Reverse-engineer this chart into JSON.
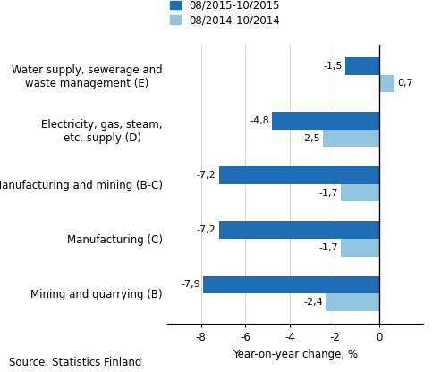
{
  "categories": [
    "Mining and quarrying (B)",
    "Manufacturing (C)",
    "Manufacturing and mining (B-C)",
    "Electricity, gas, steam,\netc. supply (D)",
    "Water supply, sewerage and\nwaste management (E)"
  ],
  "series1_label": "08/2015-10/2015",
  "series2_label": "08/2014-10/2014",
  "series1_values": [
    -7.9,
    -7.2,
    -7.2,
    -4.8,
    -1.5
  ],
  "series2_values": [
    -2.4,
    -1.7,
    -1.7,
    -2.5,
    0.7
  ],
  "series1_color": "#1f6db5",
  "series2_color": "#92c5e0",
  "xlim": [
    -9.5,
    2.0
  ],
  "xticks": [
    -8,
    -6,
    -4,
    -2,
    0
  ],
  "xlabel": "Year-on-year change, %",
  "source_text": "Source: Statistics Finland",
  "bar_height": 0.32,
  "label_fontsize": 8.0,
  "tick_fontsize": 8.5,
  "source_fontsize": 8.5,
  "legend_fontsize": 8.5
}
